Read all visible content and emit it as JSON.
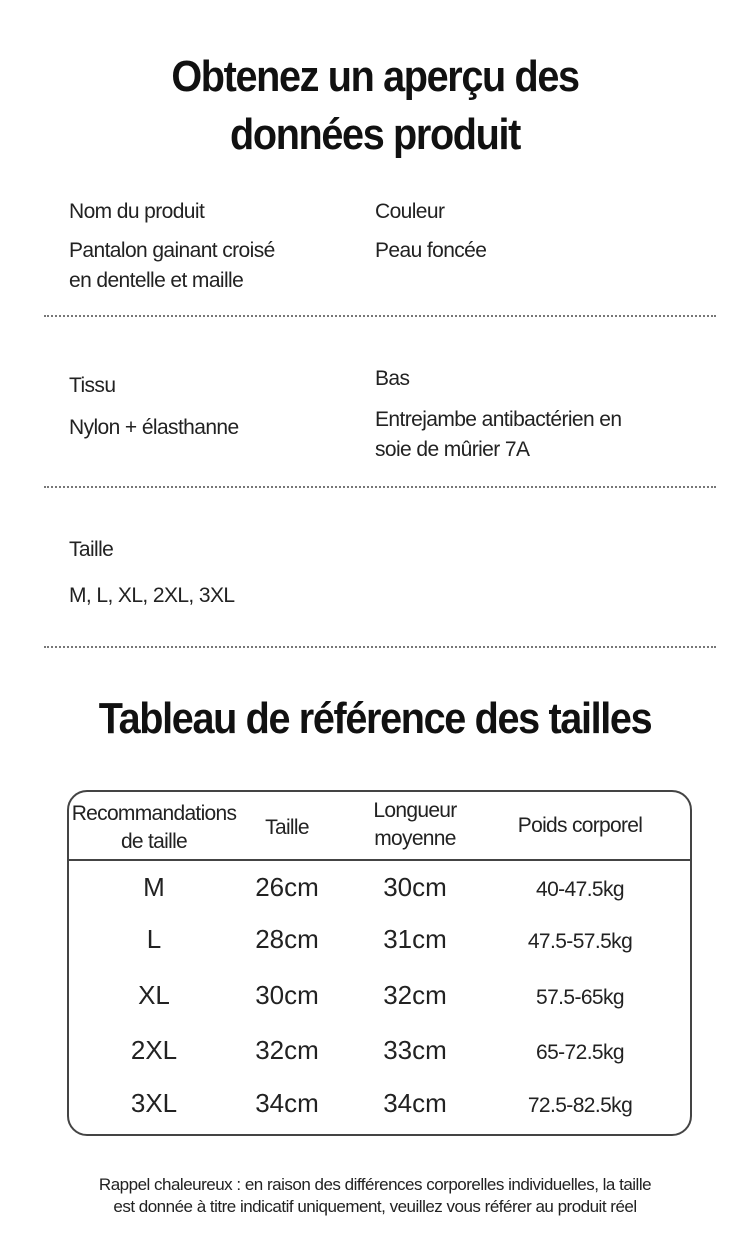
{
  "header": {
    "title_line1": "Obtenez un aperçu des",
    "title_line2": "données produit"
  },
  "product": {
    "name": {
      "label": "Nom du produit",
      "value_line1": "Pantalon gainant croisé",
      "value_line2": "en dentelle et maille"
    },
    "color": {
      "label": "Couleur",
      "value_line1": "Peau foncée"
    },
    "fabric": {
      "label": "Tissu",
      "value_line1": "Nylon + élasthanne"
    },
    "bottom": {
      "label": "Bas",
      "value_line1": "Entrejambe antibactérien en",
      "value_line2": "soie de mûrier 7A"
    },
    "size": {
      "label": "Taille",
      "value_line1": "M, L, XL, 2XL, 3XL"
    }
  },
  "size_chart": {
    "title": "Tableau de référence des tailles",
    "headers": [
      {
        "line1": "Recommandations",
        "line2": "de taille"
      },
      {
        "line1": "Taille",
        "line2": ""
      },
      {
        "line1": "Longueur",
        "line2": "moyenne"
      },
      {
        "line1": "Poids corporel",
        "line2": ""
      }
    ],
    "rows": [
      [
        "M",
        "26cm",
        "30cm",
        "40-47.5kg"
      ],
      [
        "L",
        "28cm",
        "31cm",
        "47.5-57.5kg"
      ],
      [
        "XL",
        "30cm",
        "32cm",
        "57.5-65kg"
      ],
      [
        "2XL",
        "32cm",
        "33cm",
        "65-72.5kg"
      ],
      [
        "3XL",
        "34cm",
        "34cm",
        "72.5-82.5kg"
      ]
    ]
  },
  "footer": {
    "line1": "Rappel chaleureux : en raison des différences corporelles individuelles, la taille",
    "line2": "est donnée à titre indicatif uniquement, veuillez vous référer au produit réel"
  }
}
